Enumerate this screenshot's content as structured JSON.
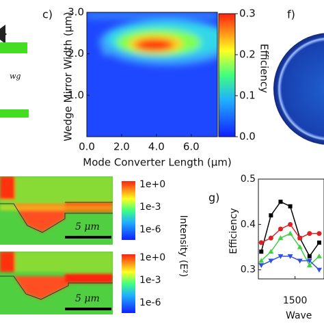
{
  "panels": {
    "a": {
      "subscript": "wg"
    },
    "c": {
      "label": "c)",
      "xlabel": "Mode Converter Length (μm)",
      "ylabel": "Wedge Mirror Width (μm)",
      "xlim": [
        0,
        7.5
      ],
      "ylim": [
        0,
        3
      ],
      "xticks": [
        {
          "value": 0,
          "label": "0.0"
        },
        {
          "value": 2,
          "label": "2.0"
        },
        {
          "value": 4,
          "label": "4.0"
        },
        {
          "value": 6,
          "label": "6.0"
        }
      ],
      "yticks": [
        {
          "value": 1,
          "label": "1.0"
        },
        {
          "value": 2,
          "label": "2.0"
        },
        {
          "value": 3,
          "label": "3.0"
        }
      ],
      "colorbar": {
        "label": "Efficiency",
        "lim": [
          0,
          0.3
        ],
        "ticks": [
          {
            "value": 0,
            "label": "0.0"
          },
          0.1,
          0.2,
          0.3
        ]
      }
    },
    "f": {
      "label": "f)"
    },
    "fields": {
      "intensity_label": "Intensity (E²)",
      "plots": [
        {
          "ticks": [
            "1e+0",
            "1e-3",
            "1e-6"
          ],
          "scale_bar": "5 μm"
        },
        {
          "ticks": [
            "1e+0",
            "1e-3",
            "1e-6"
          ],
          "scale_bar": "5 μm"
        }
      ]
    },
    "g": {
      "type": "line",
      "label": "g)",
      "ylabel": "Efficiency",
      "xlabel": "Wave",
      "x": [
        1465,
        1475,
        1485,
        1495,
        1505,
        1515,
        1525
      ],
      "xlim": [
        1462,
        1530
      ],
      "ylim": [
        0.28,
        0.5
      ],
      "xticks": [
        1500
      ],
      "yticks": [
        0.3,
        0.4,
        0.5
      ],
      "series": [
        {
          "color": "#000000",
          "marker": "square",
          "values": [
            0.34,
            0.42,
            0.45,
            0.44,
            0.37,
            0.33,
            0.36
          ]
        },
        {
          "color": "#e02020",
          "marker": "circle",
          "values": [
            0.36,
            0.37,
            0.39,
            0.4,
            0.37,
            0.38,
            0.38
          ]
        },
        {
          "color": "#40d040",
          "marker": "triangle",
          "values": [
            0.32,
            0.34,
            0.37,
            0.38,
            0.35,
            0.31,
            0.33
          ]
        },
        {
          "color": "#3050e0",
          "marker": "down",
          "values": [
            0.31,
            0.32,
            0.33,
            0.33,
            0.32,
            0.32,
            0.3
          ]
        }
      ]
    }
  }
}
